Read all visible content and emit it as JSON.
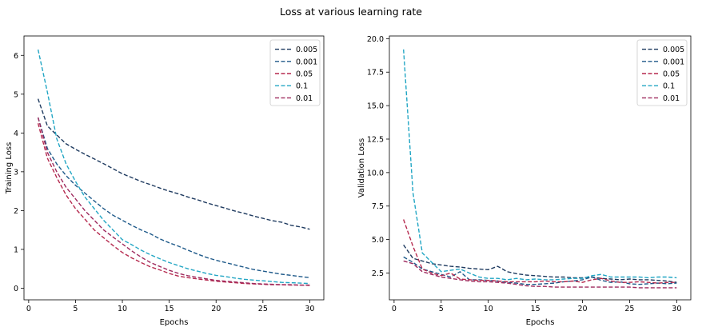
{
  "figure": {
    "suptitle": "Loss at various learning rate"
  },
  "colors": {
    "0.005": "#1e3a5f",
    "0.001": "#1f5a8a",
    "0.05": "#b5294e",
    "0.1": "#22a6c4",
    "0.01": "#9e2a5e"
  },
  "chart_data": [
    {
      "type": "line",
      "xlabel": "Epochs",
      "ylabel": "Training Loss",
      "xlim": [
        -0.5,
        31.5
      ],
      "ylim": [
        -0.3,
        6.5
      ],
      "xticks": [
        0,
        5,
        10,
        15,
        20,
        25,
        30
      ],
      "yticks": [
        0,
        1,
        2,
        3,
        4,
        5,
        6
      ],
      "ytick_labels": [
        "0",
        "1",
        "2",
        "3",
        "4",
        "5",
        "6"
      ],
      "legend_position": "top-right",
      "x": [
        1,
        2,
        3,
        4,
        5,
        6,
        7,
        8,
        9,
        10,
        11,
        12,
        13,
        14,
        15,
        16,
        17,
        18,
        19,
        20,
        21,
        22,
        23,
        24,
        25,
        26,
        27,
        28,
        29,
        30
      ],
      "series": [
        {
          "name": "0.005",
          "values": [
            4.88,
            4.18,
            3.95,
            3.72,
            3.58,
            3.45,
            3.33,
            3.21,
            3.08,
            2.95,
            2.85,
            2.75,
            2.67,
            2.58,
            2.5,
            2.43,
            2.35,
            2.28,
            2.2,
            2.13,
            2.06,
            1.99,
            1.93,
            1.86,
            1.8,
            1.74,
            1.7,
            1.62,
            1.58,
            1.52
          ]
        },
        {
          "name": "0.001",
          "values": [
            4.4,
            3.6,
            3.2,
            2.9,
            2.65,
            2.45,
            2.25,
            2.05,
            1.88,
            1.75,
            1.62,
            1.5,
            1.4,
            1.27,
            1.17,
            1.08,
            0.98,
            0.88,
            0.79,
            0.72,
            0.66,
            0.6,
            0.54,
            0.48,
            0.44,
            0.4,
            0.36,
            0.33,
            0.3,
            0.27
          ]
        },
        {
          "name": "0.05",
          "values": [
            4.25,
            3.35,
            2.85,
            2.4,
            2.05,
            1.78,
            1.5,
            1.3,
            1.1,
            0.92,
            0.78,
            0.66,
            0.55,
            0.47,
            0.38,
            0.31,
            0.27,
            0.24,
            0.21,
            0.18,
            0.16,
            0.14,
            0.12,
            0.11,
            0.1,
            0.09,
            0.09,
            0.08,
            0.08,
            0.07
          ]
        },
        {
          "name": "0.1",
          "values": [
            6.15,
            5.05,
            3.85,
            3.2,
            2.75,
            2.35,
            2.05,
            1.75,
            1.5,
            1.25,
            1.12,
            0.98,
            0.86,
            0.76,
            0.66,
            0.58,
            0.5,
            0.44,
            0.38,
            0.33,
            0.3,
            0.26,
            0.23,
            0.21,
            0.19,
            0.17,
            0.15,
            0.14,
            0.13,
            0.12
          ]
        },
        {
          "name": "0.01",
          "values": [
            4.4,
            3.5,
            3.0,
            2.6,
            2.3,
            2.0,
            1.75,
            1.5,
            1.32,
            1.14,
            0.96,
            0.8,
            0.66,
            0.56,
            0.46,
            0.38,
            0.32,
            0.28,
            0.24,
            0.2,
            0.18,
            0.16,
            0.14,
            0.12,
            0.11,
            0.1,
            0.09,
            0.09,
            0.08,
            0.08
          ]
        }
      ]
    },
    {
      "type": "line",
      "xlabel": "Epochs",
      "ylabel": "Validation Loss",
      "xlim": [
        -0.5,
        31.5
      ],
      "ylim": [
        0.5,
        20.2
      ],
      "xticks": [
        0,
        5,
        10,
        15,
        20,
        25,
        30
      ],
      "yticks": [
        2.5,
        5.0,
        7.5,
        10.0,
        12.5,
        15.0,
        17.5,
        20.0
      ],
      "ytick_labels": [
        "2.5",
        "5.0",
        "7.5",
        "10.0",
        "12.5",
        "15.0",
        "17.5",
        "20.0"
      ],
      "legend_position": "top-right",
      "x": [
        1,
        2,
        3,
        4,
        5,
        6,
        7,
        8,
        9,
        10,
        11,
        12,
        13,
        14,
        15,
        16,
        17,
        18,
        19,
        20,
        21,
        22,
        23,
        24,
        25,
        26,
        27,
        28,
        29,
        30
      ],
      "series": [
        {
          "name": "0.005",
          "values": [
            4.6,
            3.6,
            3.4,
            3.2,
            3.1,
            3.0,
            2.95,
            2.85,
            2.8,
            2.75,
            3.0,
            2.6,
            2.45,
            2.35,
            2.3,
            2.25,
            2.2,
            2.2,
            2.15,
            2.15,
            2.2,
            2.1,
            2.05,
            2.0,
            2.05,
            2.0,
            2.0,
            1.95,
            1.9,
            1.8
          ]
        },
        {
          "name": "0.001",
          "values": [
            3.7,
            3.3,
            2.8,
            2.6,
            2.4,
            2.2,
            2.6,
            2.0,
            2.0,
            1.95,
            1.9,
            1.8,
            1.75,
            1.65,
            1.65,
            1.7,
            1.75,
            1.85,
            1.9,
            2.0,
            2.2,
            1.95,
            1.8,
            1.85,
            1.7,
            1.65,
            1.7,
            1.75,
            1.7,
            1.75
          ]
        },
        {
          "name": "0.05",
          "values": [
            6.5,
            4.5,
            2.8,
            2.5,
            2.3,
            2.5,
            2.05,
            2.0,
            1.95,
            1.95,
            1.9,
            1.85,
            1.85,
            1.85,
            1.85,
            1.9,
            1.85,
            1.85,
            1.9,
            1.8,
            2.0,
            2.1,
            1.9,
            1.8,
            1.8,
            1.85,
            1.8,
            1.75,
            1.8,
            1.8
          ]
        },
        {
          "name": "0.1",
          "values": [
            19.2,
            8.5,
            4.0,
            3.3,
            2.6,
            2.7,
            2.8,
            2.5,
            2.2,
            2.1,
            2.1,
            2.0,
            2.1,
            2.0,
            2.05,
            2.0,
            2.0,
            2.05,
            2.1,
            2.1,
            2.3,
            2.4,
            2.2,
            2.2,
            2.2,
            2.2,
            2.15,
            2.2,
            2.2,
            2.15
          ]
        },
        {
          "name": "0.01",
          "values": [
            3.4,
            3.2,
            2.6,
            2.4,
            2.2,
            2.1,
            2.0,
            1.9,
            1.85,
            1.85,
            1.8,
            1.75,
            1.65,
            1.55,
            1.5,
            1.5,
            1.45,
            1.45,
            1.45,
            1.45,
            1.45,
            1.45,
            1.45,
            1.45,
            1.45,
            1.4,
            1.4,
            1.4,
            1.4,
            1.4
          ]
        }
      ]
    }
  ]
}
